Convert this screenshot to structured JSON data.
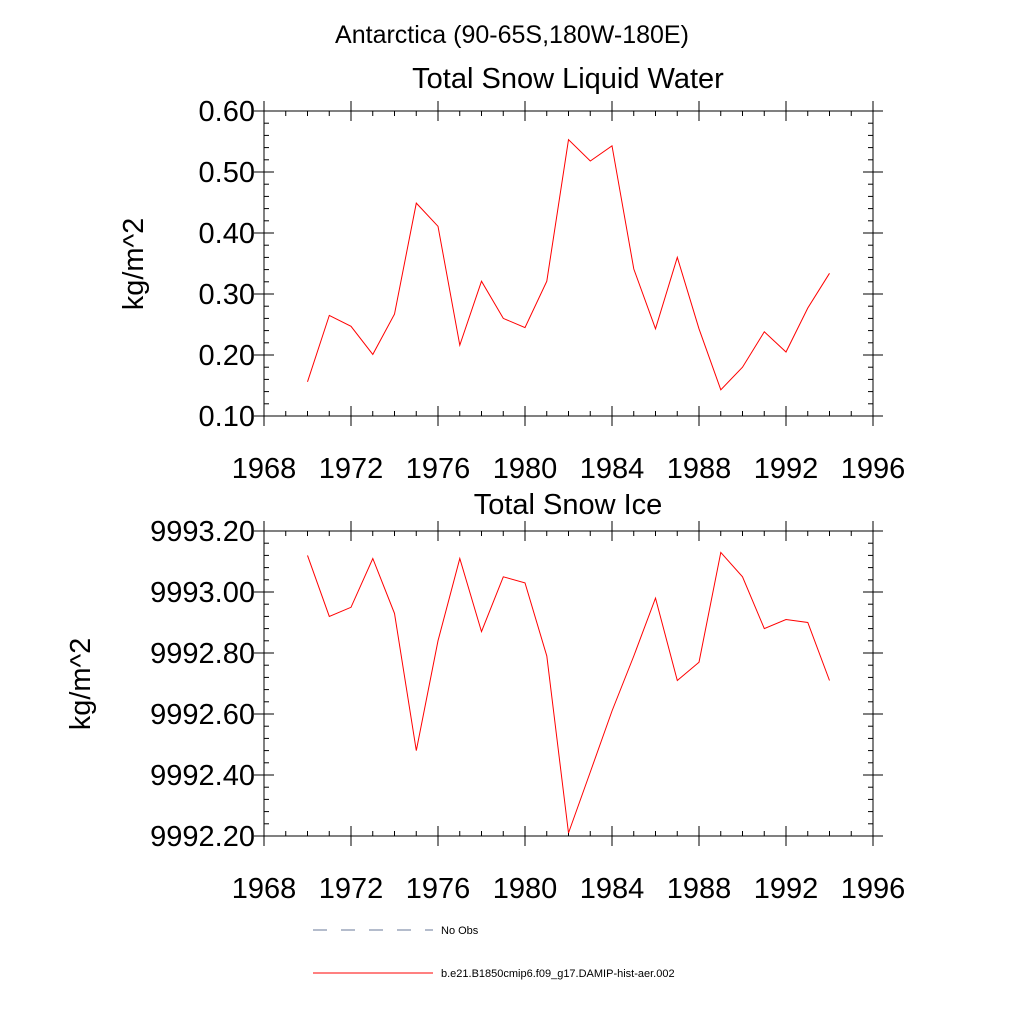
{
  "figure": {
    "main_title": "Antarctica (90-65S,180W-180E)"
  },
  "chart_data": [
    {
      "type": "line",
      "title": "Total Snow Liquid Water",
      "xlabel": "",
      "ylabel": "kg/m^2",
      "xlim": [
        1968,
        1996
      ],
      "ylim": [
        0.1,
        0.6
      ],
      "x_ticks": [
        1968,
        1972,
        1976,
        1980,
        1984,
        1988,
        1992,
        1996
      ],
      "x_tick_labels": [
        "1968",
        "1972",
        "1976",
        "1980",
        "1984",
        "1988",
        "1992",
        "1996"
      ],
      "y_ticks": [
        0.1,
        0.2,
        0.3,
        0.4,
        0.5,
        0.6
      ],
      "y_tick_labels": [
        "0.10",
        "0.20",
        "0.30",
        "0.40",
        "0.50",
        "0.60"
      ],
      "x_minor_step": 1,
      "y_minor_step": 0.02,
      "grid": false,
      "series": [
        {
          "name": "b.e21.B1850cmip6.f09_g17.DAMIP-hist-aer.002",
          "color": "#ff0000",
          "x": [
            1970,
            1971,
            1972,
            1973,
            1974,
            1975,
            1976,
            1977,
            1978,
            1979,
            1980,
            1981,
            1982,
            1983,
            1984,
            1985,
            1986,
            1987,
            1988,
            1989,
            1990,
            1991,
            1992,
            1993,
            1994
          ],
          "y": [
            0.156,
            0.265,
            0.247,
            0.201,
            0.267,
            0.449,
            0.411,
            0.216,
            0.321,
            0.26,
            0.245,
            0.321,
            0.553,
            0.518,
            0.543,
            0.341,
            0.243,
            0.36,
            0.243,
            0.143,
            0.18,
            0.238,
            0.205,
            0.277,
            0.334
          ]
        }
      ]
    },
    {
      "type": "line",
      "title": "Total Snow Ice",
      "xlabel": "",
      "ylabel": "kg/m^2",
      "xlim": [
        1968,
        1996
      ],
      "ylim": [
        9992.2,
        9993.2
      ],
      "x_ticks": [
        1968,
        1972,
        1976,
        1980,
        1984,
        1988,
        1992,
        1996
      ],
      "x_tick_labels": [
        "1968",
        "1972",
        "1976",
        "1980",
        "1984",
        "1988",
        "1992",
        "1996"
      ],
      "y_ticks": [
        9992.2,
        9992.4,
        9992.6,
        9992.8,
        9993.0,
        9993.2
      ],
      "y_tick_labels": [
        "9992.20",
        "9992.40",
        "9992.60",
        "9992.80",
        "9993.00",
        "9993.20"
      ],
      "x_minor_step": 1,
      "y_minor_step": 0.04,
      "grid": false,
      "series": [
        {
          "name": "b.e21.B1850cmip6.f09_g17.DAMIP-hist-aer.002",
          "color": "#ff0000",
          "x": [
            1970,
            1971,
            1972,
            1973,
            1974,
            1975,
            1976,
            1977,
            1978,
            1979,
            1980,
            1981,
            1982,
            1983,
            1984,
            1985,
            1986,
            1987,
            1988,
            1989,
            1990,
            1991,
            1992,
            1993,
            1994
          ],
          "y": [
            9993.12,
            9992.92,
            9992.95,
            9993.11,
            9992.93,
            9992.48,
            9992.84,
            9993.11,
            9992.87,
            9993.05,
            9993.03,
            9992.79,
            9992.21,
            9992.41,
            9992.61,
            9992.79,
            9992.98,
            9992.71,
            9992.77,
            9993.13,
            9993.05,
            9992.88,
            9992.91,
            9992.9,
            9992.71
          ]
        }
      ]
    }
  ],
  "legend": {
    "placement": "bottom-center",
    "entries": [
      {
        "label": "No Obs",
        "color": "#6a7a9a",
        "style": "dashed"
      },
      {
        "label": "b.e21.B1850cmip6.f09_g17.DAMIP-hist-aer.002",
        "color": "#ff0000",
        "style": "solid"
      }
    ]
  }
}
